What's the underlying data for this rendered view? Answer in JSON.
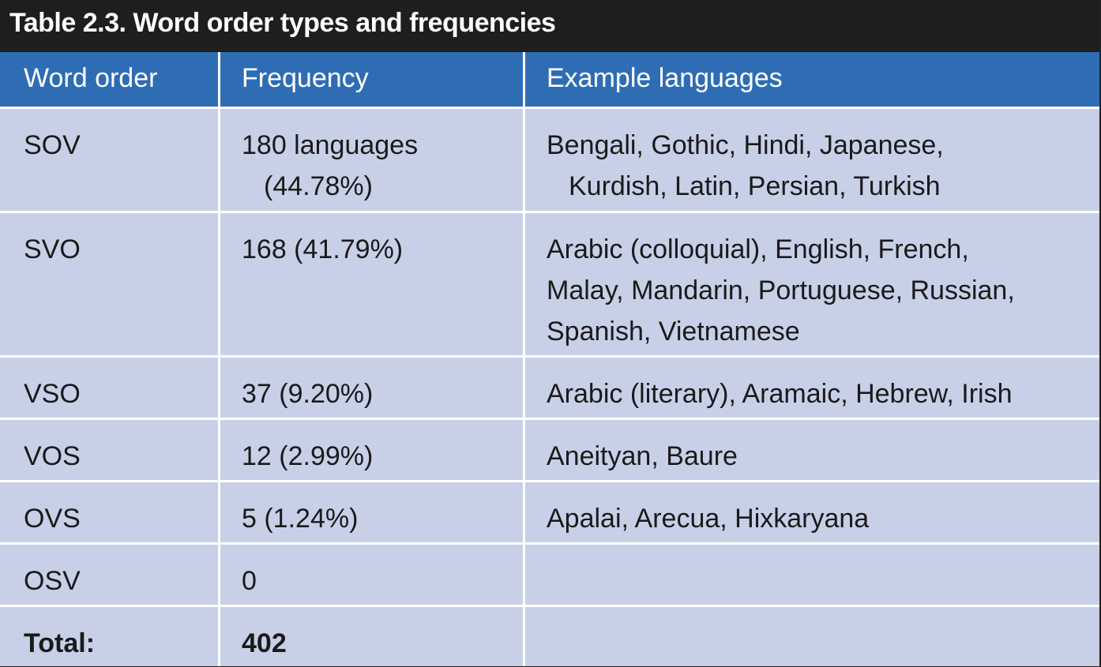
{
  "title": "Table 2.3. Word order types and frequencies",
  "columns": [
    "Word order",
    "Frequency",
    "Example languages"
  ],
  "rows": [
    {
      "order": "SOV",
      "frequency": [
        "180 languages",
        "(44.78%)"
      ],
      "examples": [
        "Bengali, Gothic, Hindi, Japanese,",
        "Kurdish, Latin, Persian, Turkish"
      ]
    },
    {
      "order": "SVO",
      "frequency": [
        "168 (41.79%)"
      ],
      "examples": [
        "Arabic (colloquial), English, French,",
        "Malay, Mandarin, Portuguese, Russian,",
        "Spanish, Vietnamese"
      ]
    },
    {
      "order": "VSO",
      "frequency": [
        "37 (9.20%)"
      ],
      "examples": [
        "Arabic (literary), Aramaic, Hebrew, Irish"
      ]
    },
    {
      "order": "VOS",
      "frequency": [
        "12 (2.99%)"
      ],
      "examples": [
        "Aneityan, Baure"
      ]
    },
    {
      "order": "OVS",
      "frequency": [
        "5 (1.24%)"
      ],
      "examples": [
        "Apalai, Arecua, Hixkaryana"
      ]
    },
    {
      "order": "OSV",
      "frequency": [
        "0"
      ],
      "examples": [
        ""
      ]
    }
  ],
  "total": {
    "label": "Total:",
    "value": "402"
  }
}
